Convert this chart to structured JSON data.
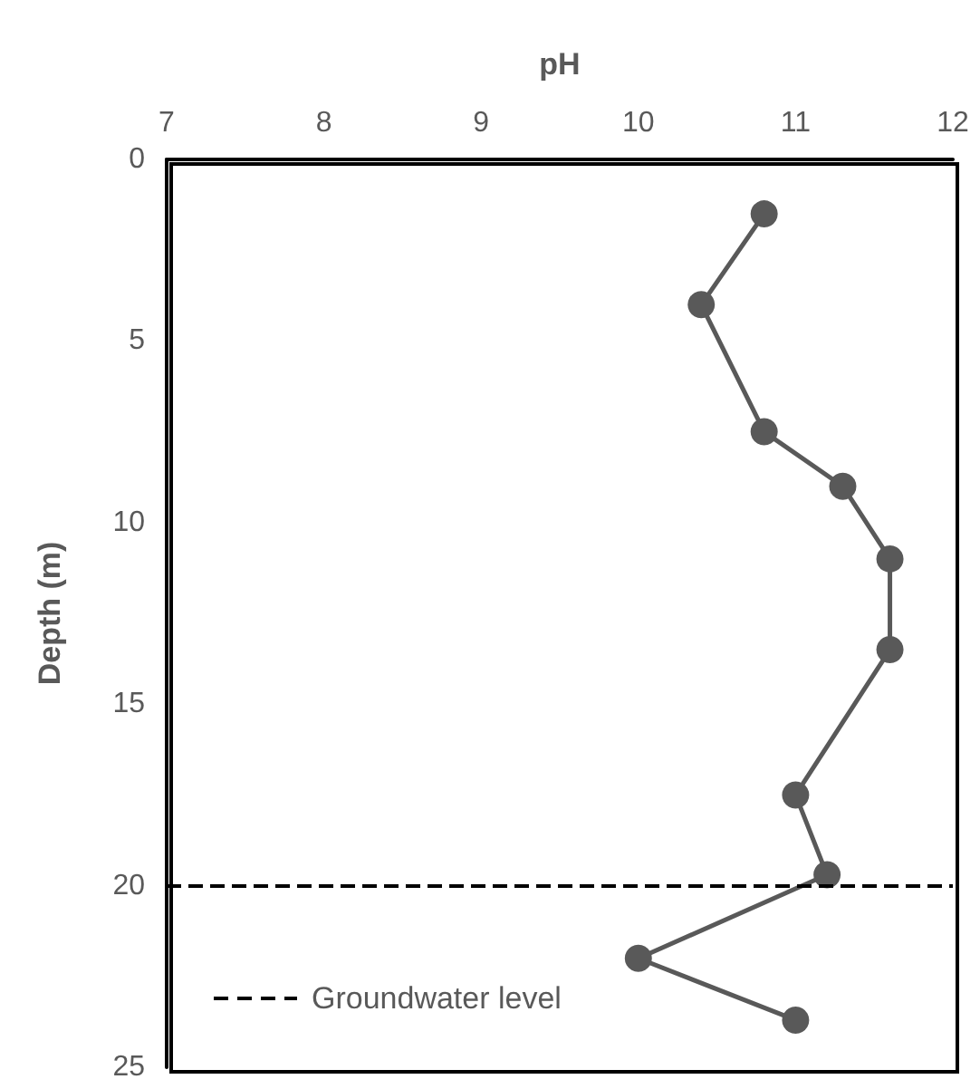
{
  "chart_data": {
    "type": "line",
    "xlabel": "pH",
    "ylabel": "Depth (m)",
    "x": [
      10.8,
      10.4,
      10.8,
      11.3,
      11.6,
      11.6,
      11,
      11.2,
      10,
      11
    ],
    "series": [
      {
        "color": "#595959",
        "values": [
          1.5,
          4,
          7.5,
          9,
          11,
          13.5,
          17.5,
          19.7,
          22,
          23.7
        ]
      }
    ],
    "xlim": [
      7,
      12
    ],
    "xticks": [
      7,
      8,
      9,
      10,
      11,
      12
    ],
    "ylim": [
      25,
      0
    ],
    "yticks": [
      0,
      5,
      10,
      15,
      20,
      25
    ],
    "marker": "circle",
    "line_style": "solid",
    "grid": false,
    "legend": "bottom left",
    "ref_lines": [
      {
        "axis": "y",
        "value": 20,
        "label": "Groundwater level",
        "color": "#000000",
        "line_style": "dashed"
      }
    ]
  }
}
